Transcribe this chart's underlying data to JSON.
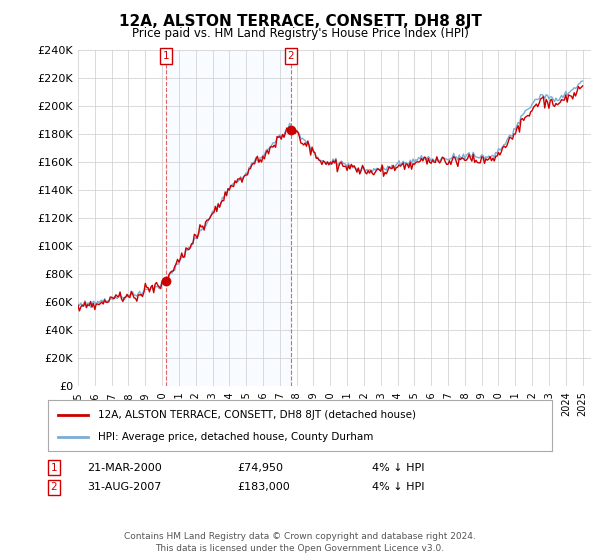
{
  "title": "12A, ALSTON TERRACE, CONSETT, DH8 8JT",
  "subtitle": "Price paid vs. HM Land Registry's House Price Index (HPI)",
  "legend_line1": "12A, ALSTON TERRACE, CONSETT, DH8 8JT (detached house)",
  "legend_line2": "HPI: Average price, detached house, County Durham",
  "annotation1_label": "1",
  "annotation1_date": "21-MAR-2000",
  "annotation1_price": "£74,950",
  "annotation1_hpi": "4% ↓ HPI",
  "annotation2_label": "2",
  "annotation2_date": "31-AUG-2007",
  "annotation2_price": "£183,000",
  "annotation2_hpi": "4% ↓ HPI",
  "footer": "Contains HM Land Registry data © Crown copyright and database right 2024.\nThis data is licensed under the Open Government Licence v3.0.",
  "line_color_red": "#cc0000",
  "line_color_blue": "#7aaed6",
  "shade_color": "#ddeeff",
  "marker_color_red": "#cc0000",
  "background_color": "#ffffff",
  "grid_color": "#cccccc",
  "ylim": [
    0,
    240000
  ],
  "yticks": [
    0,
    20000,
    40000,
    60000,
    80000,
    100000,
    120000,
    140000,
    160000,
    180000,
    200000,
    220000,
    240000
  ],
  "xlim_start": 1995.0,
  "xlim_end": 2025.5,
  "sale1_x": 2000.22,
  "sale1_y": 74950,
  "sale2_x": 2007.66,
  "sale2_y": 183000
}
